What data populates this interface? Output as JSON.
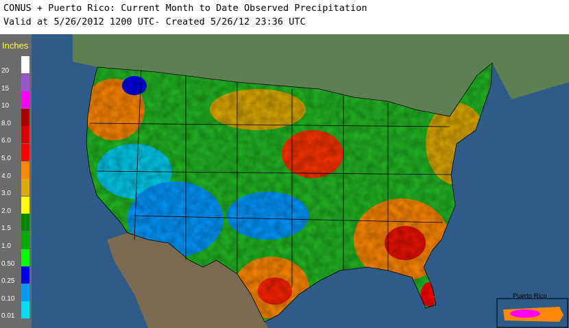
{
  "header": {
    "title_line1": "CONUS + Puerto Rico: Current Month to Date Observed Precipitation",
    "title_line2": "Valid at 5/26/2012 1200 UTC- Created 5/26/12 23:36 UTC"
  },
  "legend": {
    "title": "Inches",
    "items": [
      {
        "label": "20",
        "color": "#ffffff"
      },
      {
        "label": "15",
        "color": "#9955cc"
      },
      {
        "label": "10",
        "color": "#ff00ff"
      },
      {
        "label": "8.0",
        "color": "#aa0000"
      },
      {
        "label": "6.0",
        "color": "#dd0000"
      },
      {
        "label": "5.0",
        "color": "#ff0000"
      },
      {
        "label": "4.0",
        "color": "#ff8800"
      },
      {
        "label": "3.0",
        "color": "#ddaa00"
      },
      {
        "label": "2.0",
        "color": "#ffff00"
      },
      {
        "label": "1.5",
        "color": "#008800"
      },
      {
        "label": "1.0",
        "color": "#00aa00"
      },
      {
        "label": "0.50",
        "color": "#00ff00"
      },
      {
        "label": "0.25",
        "color": "#0000ee"
      },
      {
        "label": "0.10",
        "color": "#0099ff"
      },
      {
        "label": "0.01",
        "color": "#00ddee"
      }
    ]
  },
  "inset": {
    "label": "Puerto Rico"
  },
  "colors": {
    "ocean": "#2e5b87",
    "land_no_data": "#7a6a52",
    "canada": "#5d7f52",
    "state_lines": "#000000"
  }
}
